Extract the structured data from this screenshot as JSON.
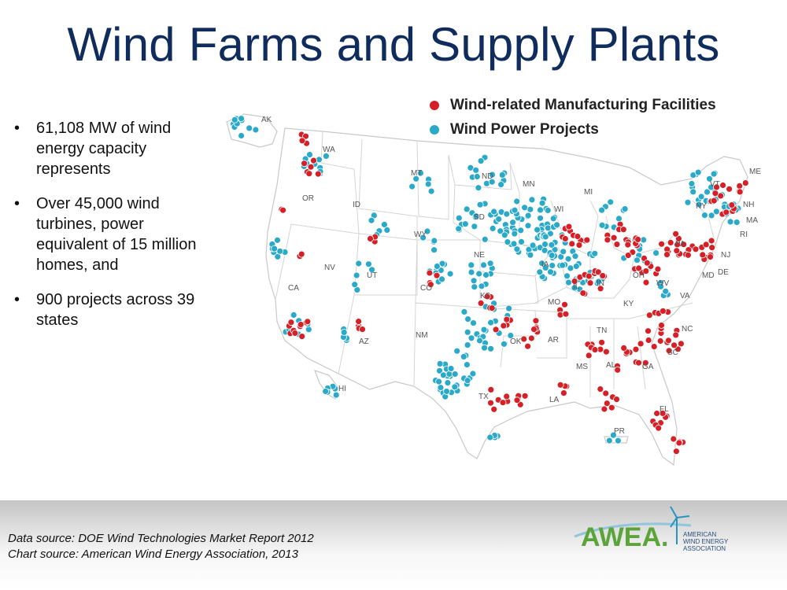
{
  "title": "Wind Farms and Supply Plants",
  "bullets": [
    {
      "line1": "61,108 MW of wind",
      "line2": "energy capacity",
      "line3": "represents",
      "line4": ""
    },
    {
      "line1": "Over 45,000 wind",
      "line2": "turbines, power",
      "line3": "equivalent of 15 million",
      "line4": "homes, and"
    },
    {
      "line1": "900 projects across 39",
      "line2": "states",
      "line3": "",
      "line4": ""
    }
  ],
  "bullet_char": "•",
  "legend": {
    "manufacturing": {
      "label": "Wind-related Manufacturing Facilities",
      "color": "#d62027"
    },
    "projects": {
      "label": "Wind Power Projects",
      "color": "#2aa9c9"
    }
  },
  "states": [
    "AK",
    "WA",
    "OR",
    "CA",
    "NV",
    "ID",
    "MT",
    "WY",
    "UT",
    "AZ",
    "CO",
    "NM",
    "ND",
    "SD",
    "NE",
    "KS",
    "OK",
    "TX",
    "MN",
    "IA",
    "MO",
    "AR",
    "LA",
    "WI",
    "IL",
    "MI",
    "IN",
    "OH",
    "KY",
    "TN",
    "MS",
    "AL",
    "GA",
    "FL",
    "SC",
    "NC",
    "VA",
    "WV",
    "PA",
    "NY",
    "VT",
    "NH",
    "ME",
    "MA",
    "RI",
    "NJ",
    "MD",
    "DE",
    "HI",
    "PR"
  ],
  "footer": {
    "data_source": "Data source: DOE Wind Technologies Market Report 2012",
    "chart_source": "Chart source: American Wind Energy Association, 2013"
  },
  "logo": {
    "name": "AWEA.",
    "line1": "AMERICAN",
    "line2": "WIND ENERGY",
    "line3": "ASSOCIATION"
  }
}
